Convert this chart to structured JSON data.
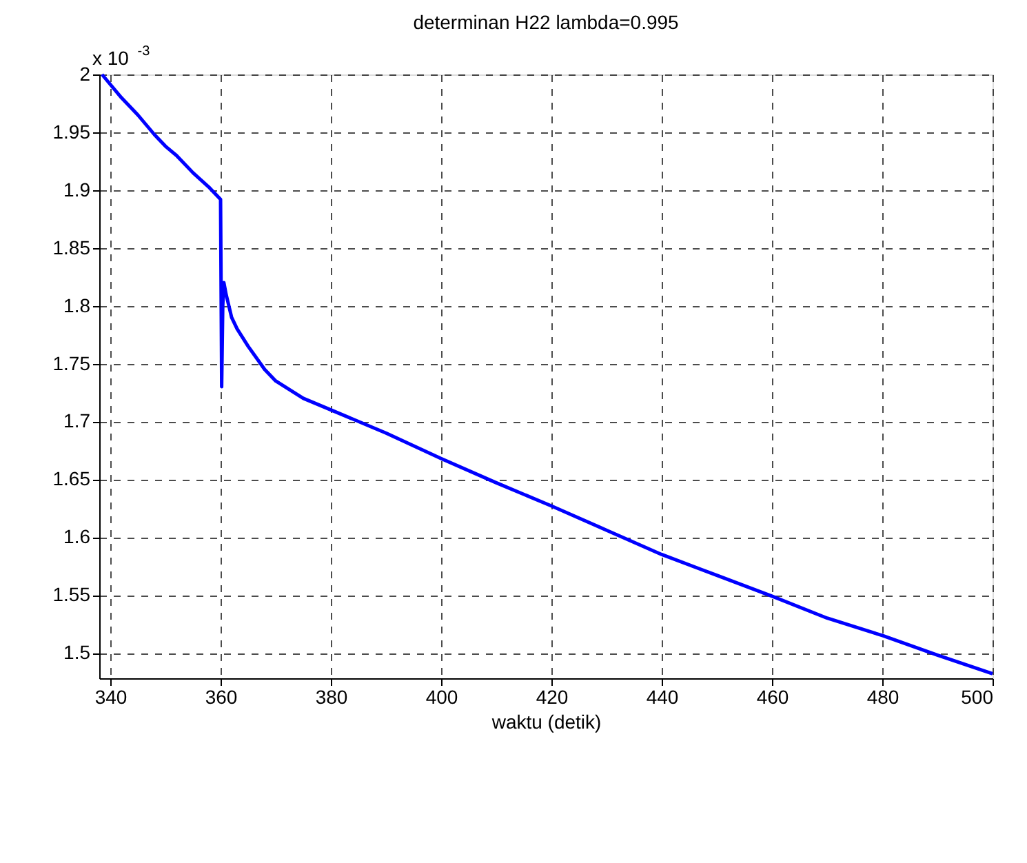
{
  "chart_data": {
    "type": "line",
    "title": "determinan H22 lambda=0.995",
    "xlabel": "waktu (detik)",
    "annotations": [
      "x 10$^{-3}$"
    ],
    "x": [
      338.5,
      342,
      345,
      348,
      350,
      352,
      355,
      358,
      360,
      360.2,
      360.4,
      360.6,
      361,
      362,
      363,
      365,
      368,
      370,
      375,
      380,
      390,
      400,
      410,
      420,
      430,
      440,
      450,
      460,
      470,
      480,
      490,
      500
    ],
    "series": [
      {
        "color": "#0000ff",
        "values": [
          2.0,
          1.98,
          1.965,
          1.948,
          1.938,
          1.93,
          1.915,
          1.902,
          1.892,
          1.73,
          1.8,
          1.82,
          1.81,
          1.79,
          1.78,
          1.765,
          1.745,
          1.735,
          1.72,
          1.71,
          1.69,
          1.668,
          1.647,
          1.627,
          1.606,
          1.585,
          1.567,
          1.549,
          1.53,
          1.515,
          1.498,
          1.482
        ]
      }
    ],
    "xlim": [
      338,
      500
    ],
    "xticks": [
      340,
      360,
      380,
      400,
      420,
      440,
      460,
      480,
      500
    ],
    "ylim": [
      1.478,
      2.0
    ],
    "yticks": [
      1.5,
      1.55,
      1.6,
      1.65,
      1.7,
      1.75,
      1.8,
      1.85,
      1.9,
      1.95,
      2
    ],
    "grid": true,
    "marker": "none",
    "line_style": "solid"
  }
}
